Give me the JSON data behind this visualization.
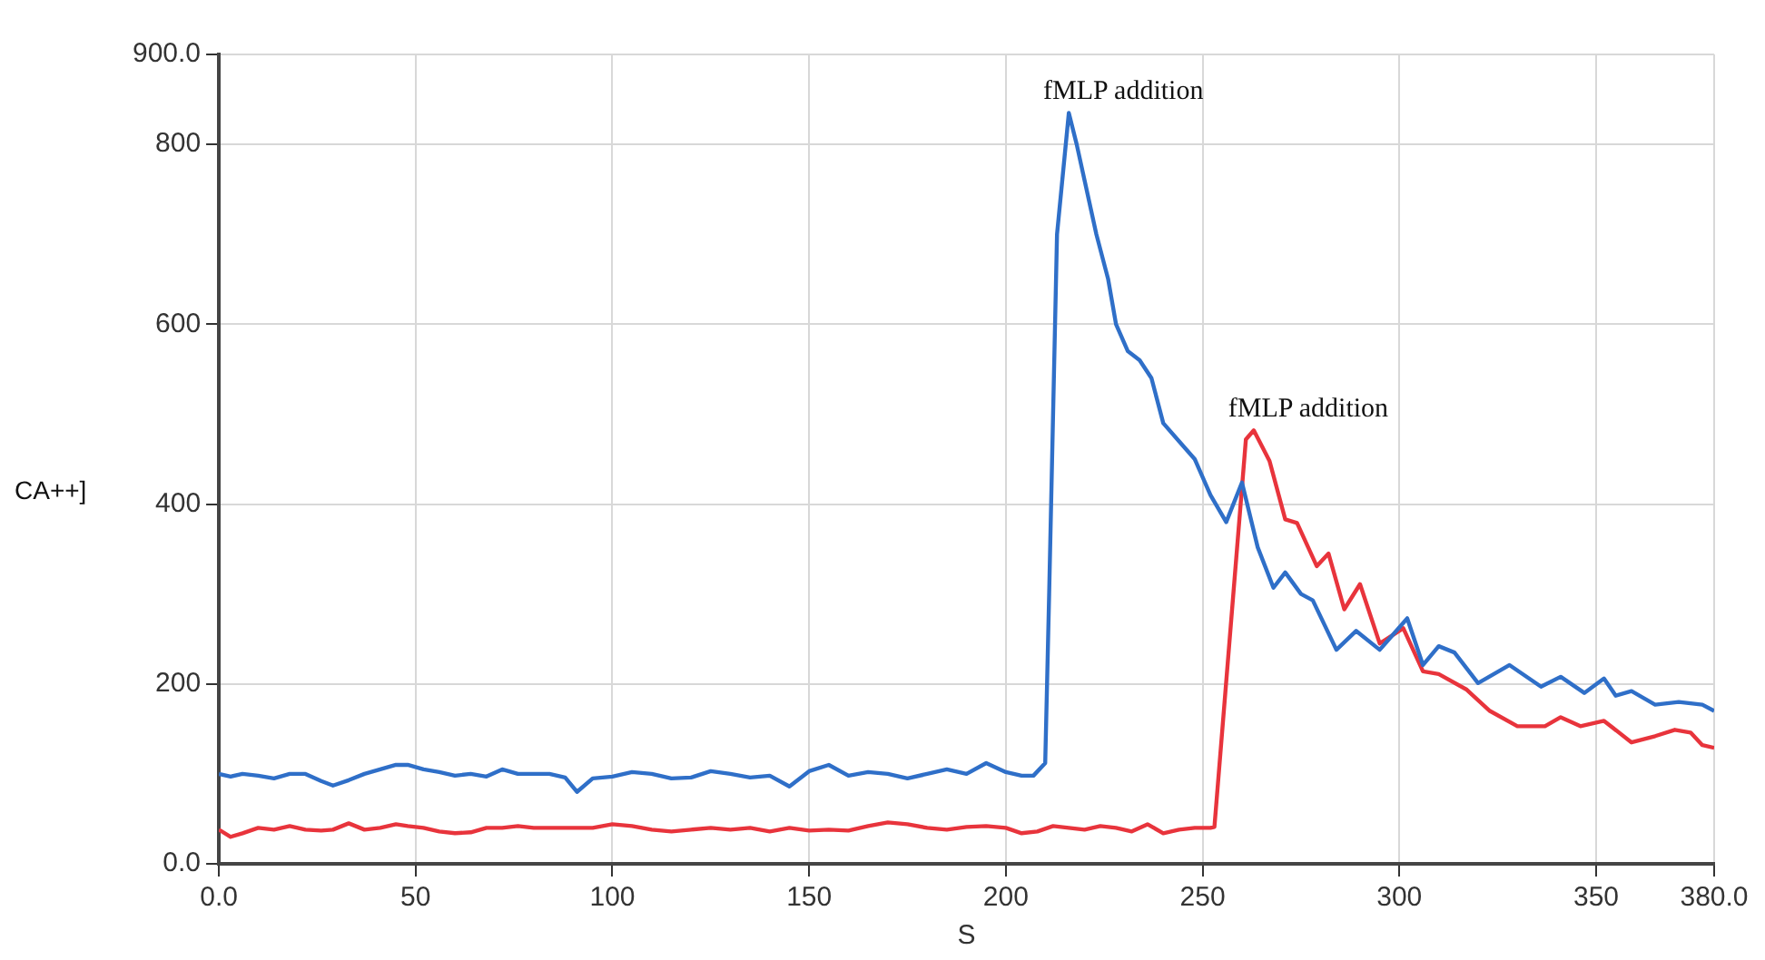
{
  "chart_data": {
    "type": "line",
    "xlabel": "S",
    "ylabel": "CA++]",
    "x": [
      0,
      3,
      6,
      10,
      14,
      18,
      22,
      26,
      29,
      33,
      37,
      41,
      45,
      48,
      52,
      56,
      60,
      64,
      68,
      72,
      76,
      80,
      84,
      88,
      91,
      95,
      100,
      105,
      110,
      115,
      120,
      125,
      130,
      135,
      140,
      145,
      150,
      155,
      160,
      165,
      170,
      175,
      180,
      185,
      190,
      195,
      200,
      204,
      207,
      210,
      211,
      213,
      216,
      218,
      220,
      223,
      226,
      228,
      231,
      234,
      237,
      240,
      244,
      248,
      252,
      256,
      260,
      264,
      268,
      271,
      275,
      278,
      284,
      289,
      295,
      302,
      306,
      310,
      314,
      320,
      328,
      336,
      341,
      347,
      352,
      355,
      359,
      365,
      371,
      377,
      380
    ],
    "series": [
      {
        "color": "#2f6fc8",
        "values": [
          100,
          97,
          100,
          98,
          95,
          100,
          100,
          92,
          87,
          93,
          100,
          105,
          110,
          110,
          105,
          102,
          98,
          100,
          97,
          105,
          100,
          100,
          100,
          96,
          80,
          95,
          97,
          102,
          100,
          95,
          96,
          103,
          100,
          96,
          98,
          86,
          103,
          110,
          98,
          102,
          100,
          95,
          100,
          105,
          100,
          112,
          102,
          98,
          98,
          112,
          300,
          700,
          835,
          800,
          760,
          700,
          650,
          600,
          570,
          560,
          540,
          490,
          470,
          450,
          410,
          380,
          424,
          352,
          307,
          324,
          300,
          293,
          238,
          259,
          238,
          273,
          221,
          242,
          235,
          201,
          221,
          197,
          208,
          190,
          206,
          187,
          192,
          177,
          180,
          177,
          170
        ]
      },
      {
        "color": "#e8343c",
        "x": [
          0,
          3,
          6,
          10,
          14,
          18,
          22,
          26,
          29,
          33,
          37,
          41,
          45,
          48,
          52,
          56,
          60,
          64,
          68,
          72,
          76,
          80,
          84,
          88,
          91,
          95,
          100,
          105,
          110,
          115,
          120,
          125,
          130,
          135,
          140,
          145,
          150,
          155,
          160,
          165,
          170,
          175,
          180,
          185,
          190,
          195,
          200,
          204,
          208,
          212,
          216,
          220,
          224,
          228,
          232,
          236,
          240,
          244,
          248,
          252,
          253,
          261,
          263,
          267,
          271,
          274,
          279,
          282,
          286,
          290,
          295,
          301,
          306,
          310,
          317,
          323,
          330,
          337,
          341,
          346,
          352,
          359,
          365,
          370,
          374,
          377,
          380
        ],
        "values": [
          38,
          30,
          34,
          40,
          38,
          42,
          38,
          37,
          38,
          45,
          38,
          40,
          44,
          42,
          40,
          36,
          34,
          35,
          40,
          40,
          42,
          40,
          40,
          40,
          40,
          40,
          44,
          42,
          38,
          36,
          38,
          40,
          38,
          40,
          36,
          40,
          37,
          38,
          37,
          42,
          46,
          44,
          40,
          38,
          41,
          42,
          40,
          34,
          36,
          42,
          40,
          38,
          42,
          40,
          36,
          44,
          34,
          38,
          40,
          40,
          41,
          472,
          482,
          448,
          383,
          379,
          331,
          345,
          283,
          311,
          245,
          262,
          214,
          211,
          194,
          170,
          153,
          153,
          163,
          153,
          159,
          135,
          142,
          149,
          146,
          132,
          129
        ]
      }
    ],
    "xlim": [
      0,
      380
    ],
    "xticks": [
      {
        "value": 0,
        "label": "0.0"
      },
      50,
      100,
      150,
      200,
      250,
      300,
      350,
      {
        "value": 380,
        "label": "380.0"
      }
    ],
    "ylim": [
      0,
      900
    ],
    "yticks": [
      {
        "value": 0,
        "label": "0.0"
      },
      200,
      400,
      600,
      800,
      {
        "value": 900,
        "label": "900.0"
      }
    ],
    "grid": true,
    "annotations": [
      {
        "text": "fMLP addition",
        "x": 216,
        "y": 835
      },
      {
        "text": "fMLP addition",
        "x": 263,
        "y": 482
      }
    ]
  }
}
